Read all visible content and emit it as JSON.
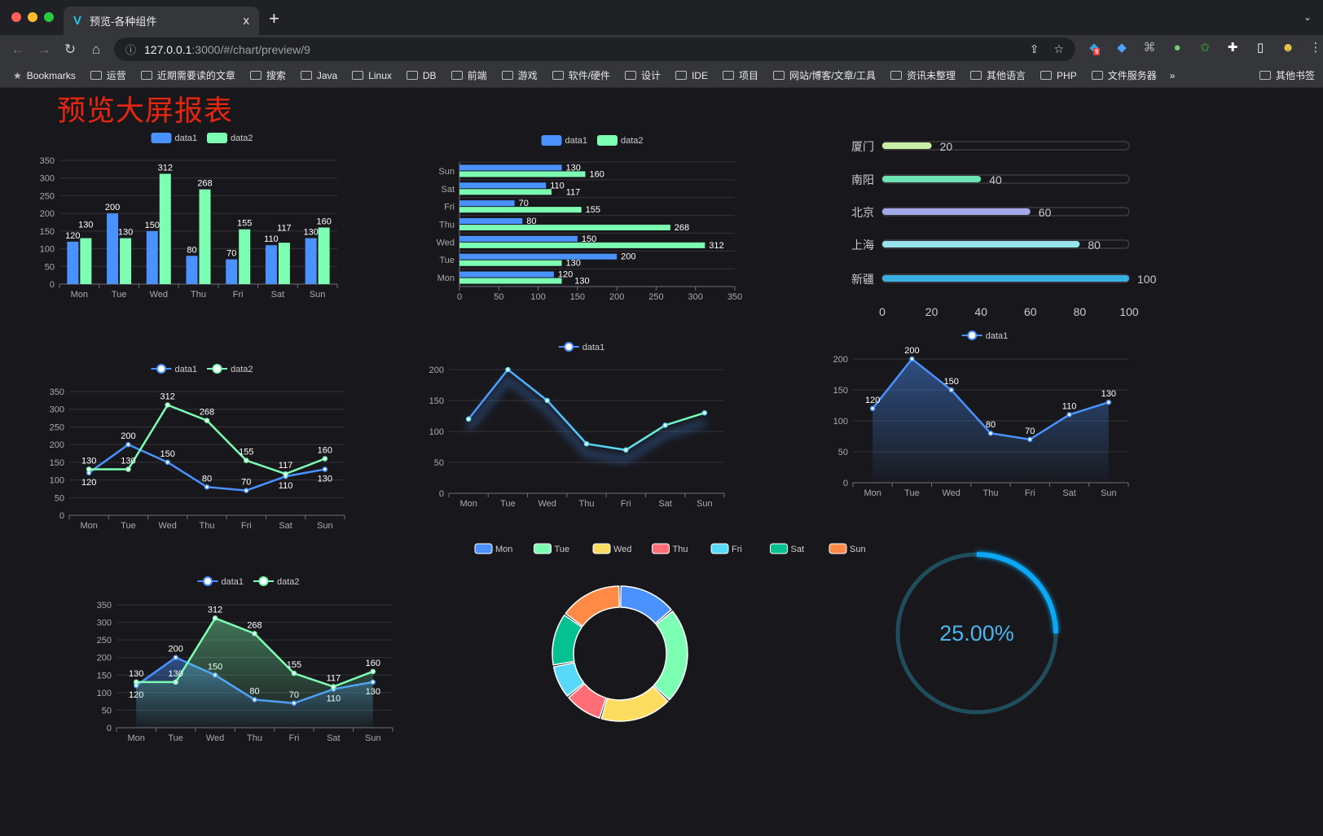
{
  "browser": {
    "tab_title": "预览-各种组件",
    "tab_close": "x",
    "new_tab": "+",
    "url_host": "127.0.0.1",
    "url_rest": ":3000/#/chart/preview/9",
    "bookmarks": [
      "Bookmarks",
      "运营",
      "近期需要读的文章",
      "搜索",
      "Java",
      "Linux",
      "DB",
      "前端",
      "游戏",
      "软件/硬件",
      "设计",
      "IDE",
      "项目",
      "网站/博客/文章/工具",
      "资讯未整理",
      "其他语言",
      "PHP",
      "文件服务器"
    ],
    "more": "»",
    "other_bookmarks": "其他书签",
    "extension_badge": "9"
  },
  "page": {
    "title": "预览大屏报表"
  },
  "colors": {
    "data1": "#4992ff",
    "data2": "#7cffb2",
    "title": "#e8260f"
  },
  "chart_data": [
    {
      "id": "bar-vertical",
      "type": "bar",
      "categories": [
        "Mon",
        "Tue",
        "Wed",
        "Thu",
        "Fri",
        "Sat",
        "Sun"
      ],
      "series": [
        {
          "name": "data1",
          "values": [
            120,
            200,
            150,
            80,
            70,
            110,
            130
          ]
        },
        {
          "name": "data2",
          "values": [
            130,
            130,
            312,
            268,
            155,
            117,
            160
          ]
        }
      ],
      "ylim": [
        0,
        350
      ],
      "yticks": [
        0,
        50,
        100,
        150,
        200,
        250,
        300,
        350
      ],
      "legend": "top",
      "grid": true
    },
    {
      "id": "bar-horizontal",
      "type": "bar",
      "orientation": "horizontal",
      "categories": [
        "Mon",
        "Tue",
        "Wed",
        "Thu",
        "Fri",
        "Sat",
        "Sun"
      ],
      "series": [
        {
          "name": "data1",
          "values": [
            120,
            200,
            150,
            80,
            70,
            110,
            130
          ]
        },
        {
          "name": "data2",
          "values": [
            130,
            130,
            312,
            268,
            155,
            117,
            160
          ]
        }
      ],
      "xlim": [
        0,
        350
      ],
      "xticks": [
        0,
        50,
        100,
        150,
        200,
        250,
        300,
        350
      ],
      "legend": "top",
      "grid": true
    },
    {
      "id": "progress-bars",
      "type": "bar",
      "orientation": "horizontal",
      "categories": [
        "厦门",
        "南阳",
        "北京",
        "上海",
        "新疆"
      ],
      "values": [
        20,
        40,
        60,
        80,
        100
      ],
      "colors": [
        "#c8f0a6",
        "#6be3b3",
        "#a3a9ea",
        "#96e4ea",
        "#3aafe2"
      ],
      "xlim": [
        0,
        100
      ],
      "xticks": [
        0,
        20,
        40,
        60,
        80,
        100
      ]
    },
    {
      "id": "line-two",
      "type": "line",
      "categories": [
        "Mon",
        "Tue",
        "Wed",
        "Thu",
        "Fri",
        "Sat",
        "Sun"
      ],
      "series": [
        {
          "name": "data1",
          "values": [
            120,
            200,
            150,
            80,
            70,
            110,
            130
          ]
        },
        {
          "name": "data2",
          "values": [
            130,
            130,
            312,
            268,
            155,
            117,
            160
          ]
        }
      ],
      "ylim": [
        0,
        350
      ],
      "yticks": [
        0,
        50,
        100,
        150,
        200,
        250,
        300,
        350
      ],
      "legend": "top",
      "grid": true
    },
    {
      "id": "line-shadow",
      "type": "line",
      "categories": [
        "Mon",
        "Tue",
        "Wed",
        "Thu",
        "Fri",
        "Sat",
        "Sun"
      ],
      "series": [
        {
          "name": "data1",
          "values": [
            120,
            200,
            150,
            80,
            70,
            110,
            130
          ]
        }
      ],
      "ylim": [
        0,
        200
      ],
      "yticks": [
        0,
        50,
        100,
        150,
        200
      ],
      "legend": "top",
      "grid": true,
      "labels": false
    },
    {
      "id": "area-one",
      "type": "area",
      "categories": [
        "Mon",
        "Tue",
        "Wed",
        "Thu",
        "Fri",
        "Sat",
        "Sun"
      ],
      "series": [
        {
          "name": "data1",
          "values": [
            120,
            200,
            150,
            80,
            70,
            110,
            130
          ]
        }
      ],
      "ylim": [
        0,
        200
      ],
      "yticks": [
        0,
        50,
        100,
        150,
        200
      ],
      "legend": "top",
      "grid": true
    },
    {
      "id": "area-two",
      "type": "area",
      "categories": [
        "Mon",
        "Tue",
        "Wed",
        "Thu",
        "Fri",
        "Sat",
        "Sun"
      ],
      "series": [
        {
          "name": "data1",
          "values": [
            120,
            200,
            150,
            80,
            70,
            110,
            130
          ]
        },
        {
          "name": "data2",
          "values": [
            130,
            130,
            312,
            268,
            155,
            117,
            160
          ]
        }
      ],
      "ylim": [
        0,
        350
      ],
      "yticks": [
        0,
        50,
        100,
        150,
        200,
        250,
        300,
        350
      ],
      "legend": "top",
      "grid": true
    },
    {
      "id": "donut",
      "type": "pie",
      "categories": [
        "Mon",
        "Tue",
        "Wed",
        "Thu",
        "Fri",
        "Sat",
        "Sun"
      ],
      "values": [
        120,
        200,
        150,
        80,
        70,
        110,
        130
      ],
      "colors": [
        "#4992ff",
        "#7cffb2",
        "#fddd60",
        "#ff6e76",
        "#58d9f9",
        "#05c091",
        "#ff8a45"
      ],
      "legend": "top"
    },
    {
      "id": "gauge",
      "type": "gauge",
      "value": 25,
      "label": "25.00%",
      "color": "#0fa8f5",
      "track": "#1f4d5c"
    }
  ]
}
